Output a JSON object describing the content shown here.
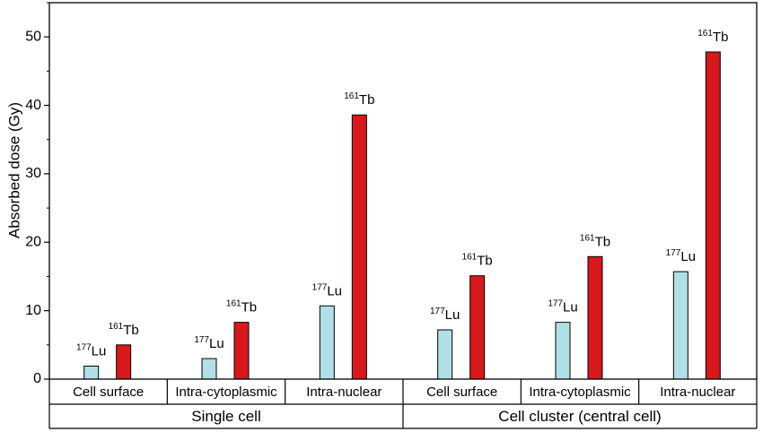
{
  "chart_data": {
    "type": "bar",
    "ylabel": "Absorbed dose (Gy)",
    "ylim": [
      0,
      55
    ],
    "yticks": [
      0,
      10,
      20,
      30,
      40,
      50
    ],
    "grid": false,
    "legend": "none",
    "groups": [
      {
        "label": "Single cell",
        "categories": [
          {
            "label": "Cell surface",
            "bars": [
              {
                "isotope_mass": "177",
                "isotope_symbol": "Lu",
                "value": 1.9,
                "color": "#b0e0e6"
              },
              {
                "isotope_mass": "161",
                "isotope_symbol": "Tb",
                "value": 5.0,
                "color": "#d7191c"
              }
            ]
          },
          {
            "label": "Intra-cytoplasmic",
            "bars": [
              {
                "isotope_mass": "177",
                "isotope_symbol": "Lu",
                "value": 3.0,
                "color": "#b0e0e6"
              },
              {
                "isotope_mass": "161",
                "isotope_symbol": "Tb",
                "value": 8.3,
                "color": "#d7191c"
              }
            ]
          },
          {
            "label": "Intra-nuclear",
            "bars": [
              {
                "isotope_mass": "177",
                "isotope_symbol": "Lu",
                "value": 10.7,
                "color": "#b0e0e6"
              },
              {
                "isotope_mass": "161",
                "isotope_symbol": "Tb",
                "value": 38.6,
                "color": "#d7191c"
              }
            ]
          }
        ]
      },
      {
        "label": "Cell cluster (central cell)",
        "categories": [
          {
            "label": "Cell surface",
            "bars": [
              {
                "isotope_mass": "177",
                "isotope_symbol": "Lu",
                "value": 7.2,
                "color": "#b0e0e6"
              },
              {
                "isotope_mass": "161",
                "isotope_symbol": "Tb",
                "value": 15.1,
                "color": "#d7191c"
              }
            ]
          },
          {
            "label": "Intra-cytoplasmic",
            "bars": [
              {
                "isotope_mass": "177",
                "isotope_symbol": "Lu",
                "value": 8.3,
                "color": "#b0e0e6"
              },
              {
                "isotope_mass": "161",
                "isotope_symbol": "Tb",
                "value": 17.9,
                "color": "#d7191c"
              }
            ]
          },
          {
            "label": "Intra-nuclear",
            "bars": [
              {
                "isotope_mass": "177",
                "isotope_symbol": "Lu",
                "value": 15.7,
                "color": "#b0e0e6"
              },
              {
                "isotope_mass": "161",
                "isotope_symbol": "Tb",
                "value": 47.8,
                "color": "#d7191c"
              }
            ]
          }
        ]
      }
    ]
  }
}
